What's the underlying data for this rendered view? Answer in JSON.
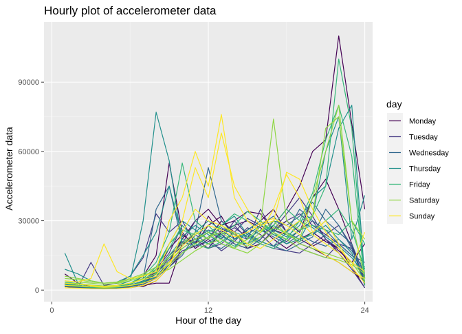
{
  "chart_data": {
    "type": "line",
    "title": "Hourly plot of accelerometer data",
    "xlabel": "Hour of the day",
    "ylabel": "Accelerometer data",
    "xlim": [
      -0.6,
      24.6
    ],
    "ylim": [
      -5000,
      116000
    ],
    "xticks": [
      0,
      12,
      24
    ],
    "xtick_labels": [
      "0",
      "12",
      "24"
    ],
    "yticks": [
      0,
      30000,
      60000,
      90000
    ],
    "ytick_labels": [
      "0",
      "30000",
      "60000",
      "90000"
    ],
    "grid": true,
    "legend": {
      "title": "day",
      "position": "right"
    },
    "series": [
      {
        "name": "Monday",
        "color": "#440154",
        "lines": [
          [
            7000,
            3000,
            1500,
            1200,
            1000,
            2500,
            6000,
            15000,
            55000,
            25000,
            18000,
            22000,
            30000,
            25000,
            18000,
            22000,
            28000,
            35000,
            45000,
            60000,
            65000,
            110000,
            72000,
            35000
          ],
          [
            2000,
            1500,
            1000,
            800,
            1200,
            2000,
            4000,
            8000,
            18000,
            24000,
            20000,
            28000,
            32000,
            22000,
            26000,
            30000,
            35000,
            25000,
            20000,
            18000,
            15000,
            12000,
            8000,
            4000
          ],
          [
            3000,
            2000,
            1200,
            1000,
            1500,
            1000,
            2000,
            3000,
            3000,
            20000,
            22000,
            18000,
            25000,
            28000,
            30000,
            27000,
            22000,
            18000,
            22000,
            25000,
            21000,
            18000,
            10000,
            1000
          ],
          [
            1500,
            1000,
            800,
            600,
            900,
            2000,
            1500,
            4000,
            10000,
            16000,
            20000,
            32000,
            24000,
            20000,
            18000,
            20000,
            26000,
            30000,
            25000,
            40000,
            48000,
            35000,
            20000,
            3000
          ],
          [
            2500,
            1800,
            1200,
            1000,
            1100,
            1500,
            3000,
            6000,
            12000,
            22000,
            30000,
            35000,
            28000,
            30000,
            34000,
            33000,
            26000,
            24000,
            22000,
            19000,
            22000,
            17000,
            12000,
            20000
          ]
        ]
      },
      {
        "name": "Tuesday",
        "color": "#443983",
        "lines": [
          [
            1500,
            1000,
            12000,
            2000,
            3000,
            6000,
            14000,
            33000,
            25000,
            30000,
            20000,
            18000,
            26000,
            28000,
            22000,
            35000,
            25000,
            30000,
            33000,
            28000,
            24000,
            20000,
            18000,
            5000
          ],
          [
            2500,
            2000,
            1500,
            1200,
            1000,
            1800,
            3500,
            8000,
            15000,
            20000,
            30000,
            25000,
            22000,
            30000,
            24000,
            20000,
            26000,
            33000,
            40000,
            32000,
            22000,
            18000,
            12000,
            8000
          ],
          [
            2000,
            1200,
            900,
            700,
            800,
            1500,
            2500,
            5000,
            11000,
            17000,
            19000,
            21000,
            24000,
            27000,
            23000,
            20000,
            18000,
            17000,
            16000,
            20000,
            24000,
            28000,
            19000,
            2000
          ],
          [
            3000,
            2000,
            1500,
            1300,
            1400,
            2000,
            4000,
            9000,
            16000,
            28000,
            22000,
            18000,
            20000,
            25000,
            31000,
            28000,
            24000,
            21000,
            26000,
            30000,
            22000,
            16000,
            9000,
            1000
          ],
          [
            1800,
            1400,
            1000,
            800,
            900,
            1600,
            3000,
            7000,
            14000,
            19000,
            25000,
            22000,
            17000,
            21000,
            27000,
            24000,
            19000,
            22000,
            18000,
            16000,
            14000,
            20000,
            15000,
            12000
          ]
        ]
      },
      {
        "name": "Wednesday",
        "color": "#31688E",
        "lines": [
          [
            3000,
            2000,
            1500,
            1200,
            1400,
            2500,
            5000,
            35000,
            45000,
            20000,
            25000,
            53000,
            30000,
            24000,
            20000,
            28000,
            32000,
            25000,
            35000,
            30000,
            26000,
            20000,
            15000,
            10000
          ],
          [
            2000,
            1500,
            1000,
            900,
            1000,
            1800,
            3000,
            6000,
            12000,
            18000,
            22000,
            26000,
            24000,
            20000,
            18000,
            22000,
            30000,
            28000,
            32000,
            38000,
            30000,
            25000,
            20000,
            6000
          ],
          [
            1500,
            1200,
            800,
            700,
            800,
            1500,
            2500,
            5500,
            10000,
            15000,
            24000,
            20000,
            18000,
            22000,
            25000,
            21000,
            19000,
            17000,
            20000,
            23000,
            35000,
            28000,
            18000,
            4000
          ],
          [
            2500,
            1800,
            1300,
            1100,
            1200,
            2000,
            3500,
            7000,
            13000,
            21000,
            19000,
            23000,
            27000,
            24000,
            22000,
            26000,
            23000,
            20000,
            24000,
            21000,
            19000,
            22000,
            17000,
            8000
          ]
        ]
      },
      {
        "name": "Thursday",
        "color": "#21908C",
        "lines": [
          [
            16000,
            3000,
            2000,
            1500,
            2000,
            4000,
            30000,
            77000,
            56000,
            20000,
            25000,
            30000,
            26000,
            22000,
            24000,
            28000,
            26000,
            23000,
            28000,
            40000,
            45000,
            70000,
            80000,
            5000
          ],
          [
            9000,
            7000,
            4000,
            3000,
            3500,
            6000,
            15000,
            25000,
            45000,
            23000,
            28000,
            24000,
            20000,
            18000,
            26000,
            30000,
            25000,
            20000,
            22000,
            32000,
            60000,
            75000,
            22000,
            41000
          ],
          [
            2500,
            2000,
            1500,
            1200,
            1300,
            2000,
            4000,
            9000,
            20000,
            30000,
            26000,
            22000,
            28000,
            32000,
            24000,
            21000,
            19000,
            25000,
            30000,
            27000,
            23000,
            19000,
            14000,
            7000
          ],
          [
            2000,
            1500,
            1200,
            1000,
            1100,
            1800,
            3000,
            6000,
            11000,
            16000,
            21000,
            25000,
            23000,
            21000,
            20000,
            23000,
            27000,
            25000,
            22000,
            24000,
            28000,
            22000,
            16000,
            3000
          ]
        ]
      },
      {
        "name": "Friday",
        "color": "#35B779",
        "lines": [
          [
            3000,
            2500,
            2000,
            1500,
            1800,
            3000,
            6000,
            12000,
            25000,
            55000,
            30000,
            25000,
            28000,
            33000,
            30000,
            25000,
            28000,
            35000,
            30000,
            32000,
            45000,
            100000,
            70000,
            2000
          ],
          [
            2500,
            2000,
            1500,
            1200,
            1500,
            2500,
            5000,
            10000,
            18000,
            28000,
            22000,
            20000,
            24000,
            28000,
            34000,
            30000,
            24000,
            22000,
            30000,
            42000,
            65000,
            80000,
            58000,
            2500
          ],
          [
            2000,
            1600,
            1200,
            1000,
            1200,
            2000,
            3500,
            7500,
            15000,
            22000,
            20000,
            18000,
            21000,
            25000,
            23000,
            20000,
            18000,
            22000,
            26000,
            28000,
            26000,
            24000,
            30000,
            20000
          ],
          [
            3500,
            2800,
            2000,
            1700,
            1900,
            2800,
            5000,
            10000,
            20000,
            26000,
            24000,
            28000,
            22000,
            19000,
            22000,
            26000,
            28000,
            24000,
            21000,
            25000,
            30000,
            35000,
            26000,
            9000
          ]
        ]
      },
      {
        "name": "Saturday",
        "color": "#8FD744",
        "lines": [
          [
            6000,
            5000,
            4000,
            3000,
            3500,
            5000,
            7000,
            10000,
            12000,
            18000,
            22000,
            25000,
            20000,
            18000,
            22000,
            28000,
            74000,
            30000,
            26000,
            32000,
            70000,
            75000,
            30000,
            22000
          ],
          [
            4000,
            3500,
            3000,
            2500,
            2800,
            4000,
            6000,
            9000,
            14000,
            20000,
            25000,
            22000,
            28000,
            24000,
            20000,
            25000,
            30000,
            24000,
            22000,
            40000,
            60000,
            80000,
            30000,
            5000
          ],
          [
            5000,
            4500,
            3500,
            3000,
            3200,
            4500,
            6500,
            8000,
            11000,
            16000,
            20000,
            23000,
            25000,
            21000,
            19000,
            23000,
            27000,
            25000,
            20000,
            18000,
            16000,
            14000,
            12000,
            4000
          ],
          [
            3000,
            2800,
            2200,
            1800,
            2000,
            3000,
            5000,
            7000,
            9000,
            13000,
            17000,
            20000,
            22000,
            18000,
            16000,
            20000,
            25000,
            22000,
            18000,
            16000,
            14000,
            13000,
            11000,
            7000
          ]
        ]
      },
      {
        "name": "Sunday",
        "color": "#FDE725",
        "lines": [
          [
            4000,
            3500,
            5000,
            20000,
            8000,
            5000,
            6000,
            8000,
            30000,
            40000,
            60000,
            45000,
            76000,
            40000,
            30000,
            25000,
            35000,
            50000,
            40000,
            25000,
            30000,
            20000,
            10000,
            25000
          ],
          [
            3000,
            2500,
            2000,
            1500,
            2000,
            3000,
            4500,
            6000,
            20000,
            30000,
            53000,
            40000,
            68000,
            45000,
            35000,
            28000,
            30000,
            51000,
            48000,
            35000,
            25000,
            18000,
            12000,
            8000
          ],
          [
            1000,
            800,
            600,
            500,
            600,
            1000,
            2000,
            4000,
            10000,
            25000,
            35000,
            30000,
            28000,
            25000,
            20000,
            18000,
            22000,
            26000,
            30000,
            24000,
            20000,
            16000,
            10000,
            3000
          ],
          [
            2000,
            1800,
            1500,
            1200,
            1400,
            2000,
            3000,
            5000,
            12000,
            19000,
            24000,
            28000,
            26000,
            23000,
            25000,
            29000,
            31000,
            28000,
            24000,
            19000,
            15000,
            12000,
            8000,
            5000
          ]
        ]
      }
    ]
  }
}
